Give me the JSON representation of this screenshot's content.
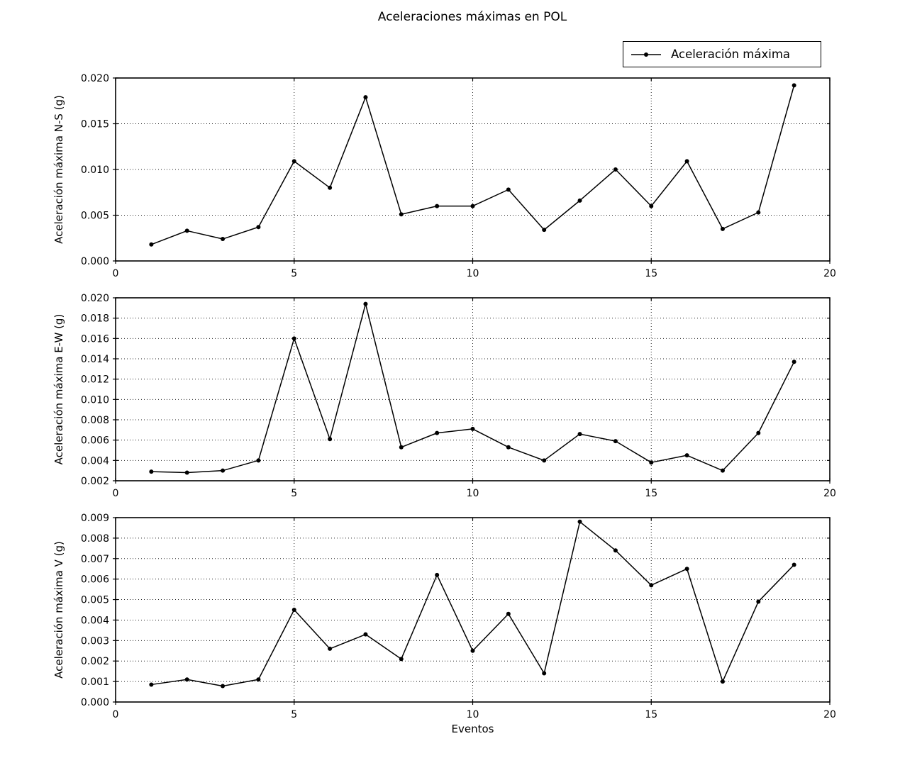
{
  "title": "Aceleraciones máximas en POL",
  "legend": {
    "label": "Aceleración máxima"
  },
  "xlabel": "Eventos",
  "line_color": "#000000",
  "background_color": "#ffffff",
  "chart_data": [
    {
      "type": "line",
      "id": "ns",
      "series_name": "Aceleración máxima",
      "ylabel": "Aceleración máxima N-S (g)",
      "x": [
        1,
        2,
        3,
        4,
        5,
        6,
        7,
        8,
        9,
        10,
        11,
        12,
        13,
        14,
        15,
        16,
        17,
        18,
        19
      ],
      "values": [
        0.0018,
        0.0033,
        0.0024,
        0.0037,
        0.0109,
        0.008,
        0.0179,
        0.0051,
        0.006,
        0.006,
        0.0078,
        0.0034,
        0.0066,
        0.01,
        0.006,
        0.0109,
        0.0035,
        0.0053,
        0.0192
      ],
      "xlim": [
        0,
        20
      ],
      "ylim": [
        0.0,
        0.02
      ],
      "xticks": [
        0,
        5,
        10,
        15,
        20
      ],
      "xtick_labels": [
        "0",
        "5",
        "10",
        "15",
        "20"
      ],
      "yticks": [
        0.0,
        0.005,
        0.01,
        0.015,
        0.02
      ],
      "ytick_labels": [
        "0.000",
        "0.005",
        "0.010",
        "0.015",
        "0.020"
      ],
      "grid": true,
      "marker": "dot"
    },
    {
      "type": "line",
      "id": "ew",
      "series_name": "Aceleración máxima",
      "ylabel": "Aceleración máxima E-W (g)",
      "x": [
        1,
        2,
        3,
        4,
        5,
        6,
        7,
        8,
        9,
        10,
        11,
        12,
        13,
        14,
        15,
        16,
        17,
        18,
        19
      ],
      "values": [
        0.0029,
        0.0028,
        0.003,
        0.004,
        0.016,
        0.0061,
        0.0194,
        0.0053,
        0.0067,
        0.0071,
        0.0053,
        0.004,
        0.0066,
        0.0059,
        0.0038,
        0.0045,
        0.003,
        0.0067,
        0.0137
      ],
      "xlim": [
        0,
        20
      ],
      "ylim": [
        0.002,
        0.02
      ],
      "xticks": [
        0,
        5,
        10,
        15,
        20
      ],
      "xtick_labels": [
        "0",
        "5",
        "10",
        "15",
        "20"
      ],
      "yticks": [
        0.002,
        0.004,
        0.006,
        0.008,
        0.01,
        0.012,
        0.014,
        0.016,
        0.018,
        0.02
      ],
      "ytick_labels": [
        "0.002",
        "0.004",
        "0.006",
        "0.008",
        "0.010",
        "0.012",
        "0.014",
        "0.016",
        "0.018",
        "0.020"
      ],
      "grid": true,
      "marker": "dot"
    },
    {
      "type": "line",
      "id": "v",
      "series_name": "Aceleración máxima",
      "ylabel": "Aceleración máxima V (g)",
      "x": [
        1,
        2,
        3,
        4,
        5,
        6,
        7,
        8,
        9,
        10,
        11,
        12,
        13,
        14,
        15,
        16,
        17,
        18,
        19
      ],
      "values": [
        0.00085,
        0.0011,
        0.00078,
        0.0011,
        0.0045,
        0.0026,
        0.0033,
        0.0021,
        0.0062,
        0.0025,
        0.0043,
        0.0014,
        0.0088,
        0.0074,
        0.0057,
        0.0065,
        0.001,
        0.0049,
        0.0067
      ],
      "xlim": [
        0,
        20
      ],
      "ylim": [
        0.0,
        0.009
      ],
      "xticks": [
        0,
        5,
        10,
        15,
        20
      ],
      "xtick_labels": [
        "0",
        "5",
        "10",
        "15",
        "20"
      ],
      "yticks": [
        0.0,
        0.001,
        0.002,
        0.003,
        0.004,
        0.005,
        0.006,
        0.007,
        0.008,
        0.009
      ],
      "ytick_labels": [
        "0.000",
        "0.001",
        "0.002",
        "0.003",
        "0.004",
        "0.005",
        "0.006",
        "0.007",
        "0.008",
        "0.009"
      ],
      "grid": true,
      "marker": "dot"
    }
  ]
}
